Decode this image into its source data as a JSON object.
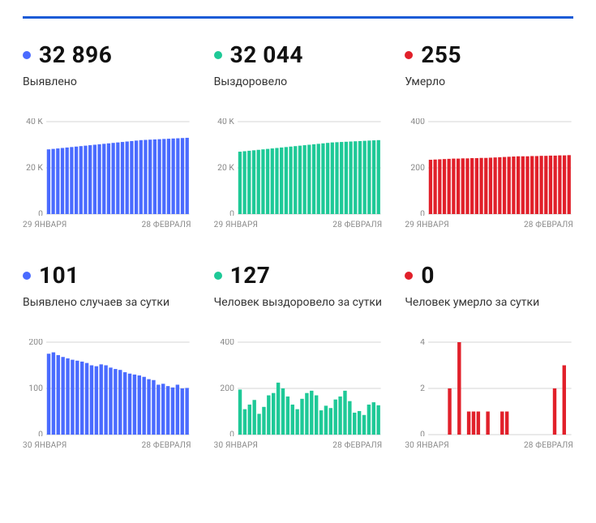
{
  "layout": {
    "top_rule_color": "#1a5bd6",
    "background_color": "#ffffff",
    "grid_cols": 3
  },
  "cards": [
    {
      "id": "detected_total",
      "dot_color": "#4a6bff",
      "value": "32 896",
      "label": "Выявлено",
      "chart": {
        "type": "bar",
        "bar_color": "#4a6bff",
        "ylim": [
          0,
          40
        ],
        "yticks": [
          0,
          20,
          40
        ],
        "ytick_labels": [
          "0",
          "20 K",
          "40 K"
        ],
        "x_start": "29 ЯНВАРЯ",
        "x_end": "28 ФЕВРАЛЯ",
        "values": [
          28,
          28.2,
          28.4,
          28.6,
          28.8,
          29,
          29.2,
          29.4,
          29.6,
          29.8,
          30,
          30.2,
          30.4,
          30.6,
          30.8,
          31,
          31.2,
          31.4,
          31.6,
          31.8,
          32,
          32.1,
          32.2,
          32.3,
          32.4,
          32.5,
          32.6,
          32.7,
          32.8,
          32.9,
          33
        ]
      }
    },
    {
      "id": "recovered_total",
      "dot_color": "#1ec997",
      "value": "32 044",
      "label": "Выздоровело",
      "chart": {
        "type": "bar",
        "bar_color": "#1ec997",
        "ylim": [
          0,
          40
        ],
        "yticks": [
          0,
          20,
          40
        ],
        "ytick_labels": [
          "0",
          "20 K",
          "40 K"
        ],
        "x_start": "29 ЯНВАРЯ",
        "x_end": "28 ФЕВРАЛЯ",
        "values": [
          27,
          27.2,
          27.4,
          27.6,
          27.8,
          28,
          28.2,
          28.4,
          28.6,
          28.8,
          29,
          29.2,
          29.4,
          29.6,
          29.8,
          30,
          30.2,
          30.4,
          30.6,
          30.8,
          31,
          31.1,
          31.2,
          31.3,
          31.4,
          31.5,
          31.6,
          31.7,
          31.8,
          31.9,
          32
        ]
      }
    },
    {
      "id": "deaths_total",
      "dot_color": "#e1202a",
      "value": "255",
      "label": "Умерло",
      "chart": {
        "type": "bar",
        "bar_color": "#e1202a",
        "ylim": [
          0,
          400
        ],
        "yticks": [
          0,
          200,
          400
        ],
        "ytick_labels": [
          "0",
          "200",
          "400"
        ],
        "x_start": "29 ЯНВАРЯ",
        "x_end": "28 ФЕВРАЛЯ",
        "values": [
          235,
          236,
          237,
          238,
          239,
          240,
          240,
          241,
          241,
          242,
          242,
          243,
          243,
          244,
          245,
          246,
          247,
          248,
          249,
          250,
          250,
          250,
          251,
          251,
          252,
          252,
          253,
          253,
          254,
          254,
          255
        ]
      }
    },
    {
      "id": "detected_daily",
      "dot_color": "#4a6bff",
      "value": "101",
      "label": "Выявлено случаев за сутки",
      "chart": {
        "type": "bar",
        "bar_color": "#4a6bff",
        "ylim": [
          0,
          200
        ],
        "yticks": [
          0,
          100,
          200
        ],
        "ytick_labels": [
          "0",
          "100",
          "200"
        ],
        "x_start": "30 ЯНВАРЯ",
        "x_end": "28 ФЕВРАЛЯ",
        "values": [
          175,
          178,
          172,
          168,
          165,
          162,
          160,
          158,
          155,
          150,
          148,
          152,
          150,
          145,
          142,
          140,
          135,
          132,
          130,
          128,
          125,
          120,
          118,
          108,
          110,
          105,
          102,
          108,
          100,
          101
        ]
      }
    },
    {
      "id": "recovered_daily",
      "dot_color": "#1ec997",
      "value": "127",
      "label": "Человек выздоровело за сутки",
      "chart": {
        "type": "bar",
        "bar_color": "#1ec997",
        "ylim": [
          0,
          400
        ],
        "yticks": [
          0,
          200,
          400
        ],
        "ytick_labels": [
          "0",
          "200",
          "400"
        ],
        "x_start": "30 ЯНВАРЯ",
        "x_end": "28 ФЕВРАЛЯ",
        "values": [
          195,
          110,
          130,
          150,
          90,
          120,
          170,
          180,
          225,
          200,
          165,
          130,
          110,
          155,
          180,
          190,
          170,
          105,
          125,
          115,
          152,
          165,
          190,
          145,
          95,
          102,
          85,
          130,
          140,
          127
        ]
      }
    },
    {
      "id": "deaths_daily",
      "dot_color": "#e1202a",
      "value": "0",
      "label": "Человек умерло за сутки",
      "chart": {
        "type": "bar",
        "bar_color": "#e1202a",
        "ylim": [
          0,
          4
        ],
        "yticks": [
          0,
          2,
          4
        ],
        "ytick_labels": [
          "0",
          "2",
          "4"
        ],
        "x_start": "30 ЯНВАРЯ",
        "x_end": "28 ФЕВРАЛЯ",
        "values": [
          0,
          0,
          0,
          0,
          2,
          0,
          4,
          0,
          1,
          1,
          1,
          0,
          1,
          0,
          0,
          1,
          1,
          0,
          0,
          0,
          0,
          0,
          0,
          0,
          0,
          0,
          2,
          0,
          3,
          0
        ]
      }
    }
  ],
  "style": {
    "value_fontsize": 28,
    "value_color": "#111111",
    "label_fontsize": 14,
    "label_color": "#333333",
    "axis_label_fontsize": 10,
    "axis_label_color": "#888888",
    "gridline_color": "#aaaaaa",
    "bar_gap_ratio": 0.25
  }
}
